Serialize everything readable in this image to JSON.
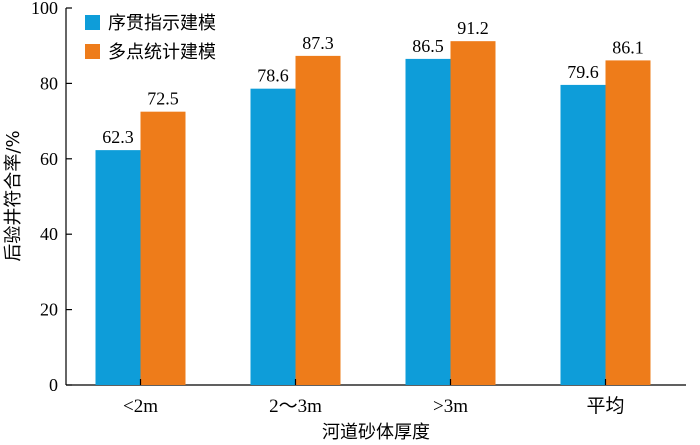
{
  "chart_data": {
    "type": "bar",
    "categories": [
      "<2m",
      "2～3m",
      ">3m",
      "平均"
    ],
    "series": [
      {
        "name": "序贯指示建模",
        "values": [
          62.3,
          78.6,
          86.5,
          79.6
        ],
        "color": "#0E9DD9"
      },
      {
        "name": "多点统计建模",
        "values": [
          72.5,
          87.3,
          91.2,
          86.1
        ],
        "color": "#EE7C1A"
      }
    ],
    "data_labels": [
      [
        "62.3",
        "78.6",
        "86.5",
        "79.6"
      ],
      [
        "72.5",
        "87.3",
        "91.2",
        "86.1"
      ]
    ],
    "yticks": [
      "0",
      "20",
      "40",
      "60",
      "80",
      "100"
    ],
    "xlabel": "河道砂体厚度",
    "ylabel": "后验井符合率/%",
    "ylim": [
      0,
      100
    ],
    "legend_position": "top-left",
    "grid": false
  }
}
